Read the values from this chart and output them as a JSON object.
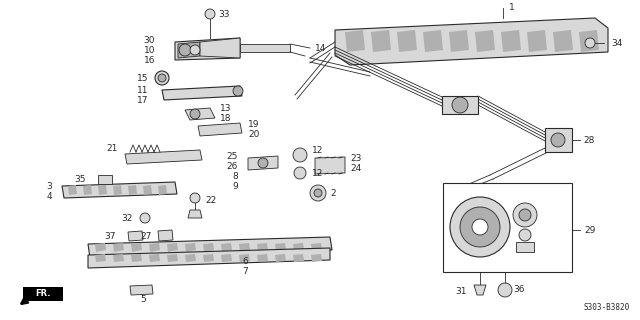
{
  "bg_color": "#ffffff",
  "line_color": "#2a2a2a",
  "diagram_code": "S303-B3820",
  "font_size": 6.5,
  "font_size_code": 5.5
}
